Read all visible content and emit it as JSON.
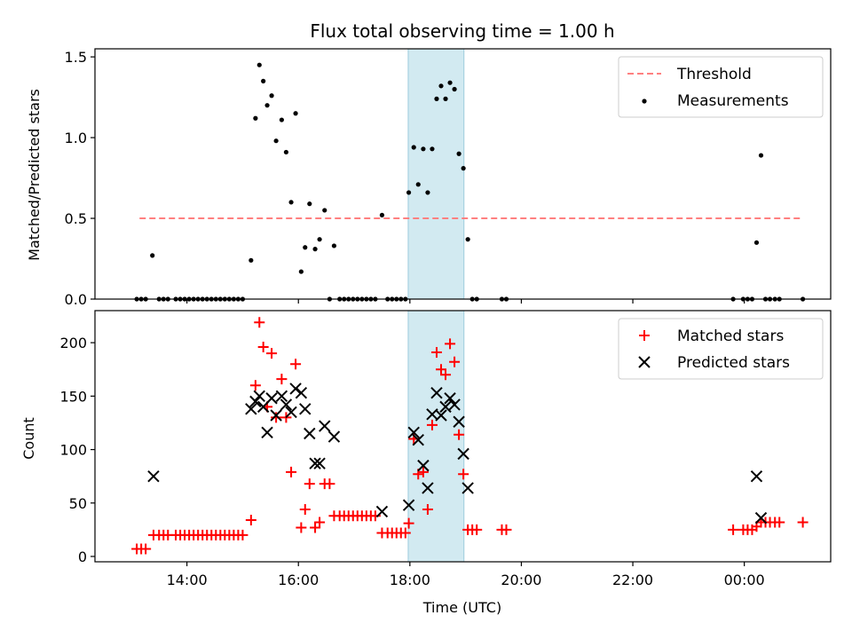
{
  "chart_data": [
    {
      "type": "scatter",
      "title": "Flux total observing time = 1.00 h",
      "xlabel": "",
      "ylabel": "Matched/Predicted stars",
      "ylim": [
        0,
        1.55
      ],
      "yticks": [
        0.0,
        0.5,
        1.0,
        1.5
      ],
      "ytick_labels": [
        "0.0",
        "0.5",
        "1.0",
        "1.5"
      ],
      "x_unit": "hours",
      "highlight_span": {
        "start": 17.97,
        "end": 18.97,
        "color": "#add8e6"
      },
      "legend": {
        "position": "top-right",
        "entries": [
          "Threshold",
          "Measurements"
        ]
      },
      "threshold": {
        "name": "Threshold",
        "value": 0.5,
        "x_start": 13.15,
        "x_end": 25.05,
        "color": "#ff8080"
      },
      "series": [
        {
          "name": "Measurements",
          "marker": "dot",
          "color": "#000000",
          "points": [
            [
              13.1,
              0
            ],
            [
              13.18,
              0
            ],
            [
              13.26,
              0
            ],
            [
              13.38,
              0.27
            ],
            [
              13.5,
              0
            ],
            [
              13.58,
              0
            ],
            [
              13.66,
              0
            ],
            [
              13.8,
              0
            ],
            [
              13.88,
              0
            ],
            [
              13.96,
              0
            ],
            [
              14.04,
              0
            ],
            [
              14.12,
              0
            ],
            [
              14.2,
              0
            ],
            [
              14.28,
              0
            ],
            [
              14.36,
              0
            ],
            [
              14.44,
              0
            ],
            [
              14.52,
              0
            ],
            [
              14.6,
              0
            ],
            [
              14.68,
              0
            ],
            [
              14.76,
              0
            ],
            [
              14.84,
              0
            ],
            [
              14.92,
              0
            ],
            [
              15.0,
              0
            ],
            [
              15.15,
              0.24
            ],
            [
              15.23,
              1.12
            ],
            [
              15.3,
              1.45
            ],
            [
              15.37,
              1.35
            ],
            [
              15.44,
              1.2
            ],
            [
              15.52,
              1.26
            ],
            [
              15.6,
              0.98
            ],
            [
              15.7,
              1.11
            ],
            [
              15.78,
              0.91
            ],
            [
              15.87,
              0.6
            ],
            [
              15.95,
              1.15
            ],
            [
              16.05,
              0.17
            ],
            [
              16.12,
              0.32
            ],
            [
              16.2,
              0.59
            ],
            [
              16.3,
              0.31
            ],
            [
              16.38,
              0.37
            ],
            [
              16.47,
              0.55
            ],
            [
              16.56,
              0
            ],
            [
              16.64,
              0.33
            ],
            [
              16.74,
              0
            ],
            [
              16.82,
              0
            ],
            [
              16.9,
              0
            ],
            [
              16.98,
              0
            ],
            [
              17.06,
              0
            ],
            [
              17.14,
              0
            ],
            [
              17.22,
              0
            ],
            [
              17.3,
              0
            ],
            [
              17.38,
              0
            ],
            [
              17.5,
              0.52
            ],
            [
              17.6,
              0
            ],
            [
              17.68,
              0
            ],
            [
              17.76,
              0
            ],
            [
              17.84,
              0
            ],
            [
              17.92,
              0
            ],
            [
              17.98,
              0.66
            ],
            [
              18.07,
              0.94
            ],
            [
              18.15,
              0.71
            ],
            [
              18.24,
              0.93
            ],
            [
              18.32,
              0.66
            ],
            [
              18.4,
              0.93
            ],
            [
              18.48,
              1.24
            ],
            [
              18.56,
              1.32
            ],
            [
              18.64,
              1.24
            ],
            [
              18.72,
              1.34
            ],
            [
              18.8,
              1.3
            ],
            [
              18.88,
              0.9
            ],
            [
              18.96,
              0.81
            ],
            [
              19.04,
              0.37
            ],
            [
              19.12,
              0
            ],
            [
              19.2,
              0
            ],
            [
              19.65,
              0
            ],
            [
              19.73,
              0
            ],
            [
              23.8,
              0
            ],
            [
              23.98,
              0
            ],
            [
              24.06,
              0
            ],
            [
              24.14,
              0
            ],
            [
              24.22,
              0.35
            ],
            [
              24.3,
              0.89
            ],
            [
              24.38,
              0
            ],
            [
              24.46,
              0
            ],
            [
              24.55,
              0
            ],
            [
              24.63,
              0
            ],
            [
              25.05,
              0
            ]
          ]
        }
      ]
    },
    {
      "type": "scatter",
      "title": "",
      "xlabel": "Time (UTC)",
      "ylabel": "Count",
      "ylim": [
        -5,
        230
      ],
      "yticks": [
        0,
        50,
        100,
        150,
        200
      ],
      "ytick_labels": [
        "0",
        "50",
        "100",
        "150",
        "200"
      ],
      "xlim": [
        12.35,
        25.55
      ],
      "xticks": [
        14,
        16,
        18,
        20,
        22,
        24
      ],
      "xtick_labels": [
        "14:00",
        "16:00",
        "18:00",
        "20:00",
        "22:00",
        "00:00"
      ],
      "highlight_span": {
        "start": 17.97,
        "end": 18.97,
        "color": "#add8e6"
      },
      "legend": {
        "position": "top-right",
        "entries": [
          "Matched stars",
          "Predicted stars"
        ]
      },
      "series": [
        {
          "name": "Matched stars",
          "marker": "plus",
          "color": "#ff0000",
          "points": [
            [
              13.1,
              7
            ],
            [
              13.18,
              7
            ],
            [
              13.26,
              7
            ],
            [
              13.4,
              20
            ],
            [
              13.5,
              20
            ],
            [
              13.58,
              20
            ],
            [
              13.66,
              20
            ],
            [
              13.8,
              20
            ],
            [
              13.88,
              20
            ],
            [
              13.96,
              20
            ],
            [
              14.04,
              20
            ],
            [
              14.12,
              20
            ],
            [
              14.2,
              20
            ],
            [
              14.28,
              20
            ],
            [
              14.36,
              20
            ],
            [
              14.44,
              20
            ],
            [
              14.52,
              20
            ],
            [
              14.6,
              20
            ],
            [
              14.68,
              20
            ],
            [
              14.76,
              20
            ],
            [
              14.84,
              20
            ],
            [
              14.92,
              20
            ],
            [
              15.0,
              20
            ],
            [
              15.15,
              34
            ],
            [
              15.23,
              160
            ],
            [
              15.3,
              219
            ],
            [
              15.37,
              196
            ],
            [
              15.44,
              140
            ],
            [
              15.52,
              190
            ],
            [
              15.6,
              130
            ],
            [
              15.7,
              166
            ],
            [
              15.78,
              130
            ],
            [
              15.87,
              79
            ],
            [
              15.95,
              180
            ],
            [
              16.05,
              27
            ],
            [
              16.12,
              44
            ],
            [
              16.2,
              68
            ],
            [
              16.3,
              27
            ],
            [
              16.38,
              32
            ],
            [
              16.47,
              68
            ],
            [
              16.56,
              68
            ],
            [
              16.64,
              38
            ],
            [
              16.74,
              38
            ],
            [
              16.82,
              38
            ],
            [
              16.9,
              38
            ],
            [
              16.98,
              38
            ],
            [
              17.06,
              38
            ],
            [
              17.14,
              38
            ],
            [
              17.22,
              38
            ],
            [
              17.3,
              38
            ],
            [
              17.38,
              38
            ],
            [
              17.5,
              22
            ],
            [
              17.6,
              22
            ],
            [
              17.68,
              22
            ],
            [
              17.76,
              22
            ],
            [
              17.84,
              22
            ],
            [
              17.92,
              22
            ],
            [
              17.98,
              31
            ],
            [
              18.07,
              110
            ],
            [
              18.15,
              77
            ],
            [
              18.24,
              79
            ],
            [
              18.32,
              44
            ],
            [
              18.4,
              123
            ],
            [
              18.48,
              191
            ],
            [
              18.56,
              175
            ],
            [
              18.64,
              170
            ],
            [
              18.72,
              199
            ],
            [
              18.8,
              182
            ],
            [
              18.88,
              114
            ],
            [
              18.96,
              77
            ],
            [
              19.04,
              25
            ],
            [
              19.12,
              25
            ],
            [
              19.2,
              25
            ],
            [
              19.65,
              25
            ],
            [
              19.73,
              25
            ],
            [
              23.8,
              25
            ],
            [
              23.98,
              25
            ],
            [
              24.06,
              25
            ],
            [
              24.14,
              25
            ],
            [
              24.22,
              28
            ],
            [
              24.3,
              32
            ],
            [
              24.38,
              32
            ],
            [
              24.46,
              32
            ],
            [
              24.55,
              32
            ],
            [
              24.63,
              32
            ],
            [
              25.05,
              32
            ]
          ]
        },
        {
          "name": "Predicted stars",
          "marker": "x",
          "color": "#000000",
          "points": [
            [
              13.4,
              75
            ],
            [
              15.15,
              138
            ],
            [
              15.23,
              145
            ],
            [
              15.3,
              150
            ],
            [
              15.37,
              140
            ],
            [
              15.44,
              116
            ],
            [
              15.52,
              148
            ],
            [
              15.6,
              132
            ],
            [
              15.7,
              150
            ],
            [
              15.78,
              142
            ],
            [
              15.87,
              135
            ],
            [
              15.95,
              157
            ],
            [
              16.05,
              153
            ],
            [
              16.12,
              138
            ],
            [
              16.2,
              115
            ],
            [
              16.3,
              87
            ],
            [
              16.38,
              87
            ],
            [
              16.47,
              122
            ],
            [
              16.64,
              112
            ],
            [
              17.5,
              42
            ],
            [
              17.98,
              48
            ],
            [
              18.07,
              116
            ],
            [
              18.15,
              109
            ],
            [
              18.24,
              85
            ],
            [
              18.32,
              64
            ],
            [
              18.4,
              133
            ],
            [
              18.48,
              153
            ],
            [
              18.56,
              132
            ],
            [
              18.64,
              140
            ],
            [
              18.72,
              148
            ],
            [
              18.8,
              142
            ],
            [
              18.88,
              126
            ],
            [
              18.96,
              96
            ],
            [
              19.04,
              64
            ],
            [
              24.22,
              75
            ],
            [
              24.3,
              36
            ]
          ]
        }
      ]
    }
  ]
}
